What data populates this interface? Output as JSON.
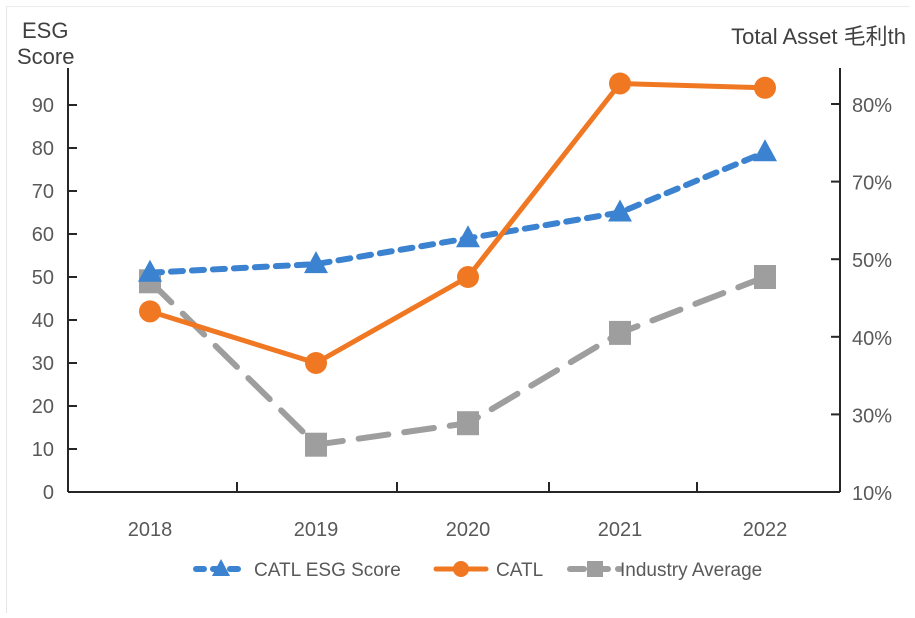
{
  "chart_data": {
    "type": "line",
    "title": "",
    "categories": [
      "2018",
      "2019",
      "2020",
      "2021",
      "2022"
    ],
    "left_axis": {
      "title_line1": "ESG",
      "title_line2": "Score",
      "range": [
        0,
        90
      ],
      "ticks": [
        0,
        10,
        20,
        30,
        40,
        50,
        60,
        70,
        80,
        90
      ],
      "tick_labels": [
        "0",
        "10",
        "20",
        "30",
        "40",
        "50",
        "60",
        "70",
        "80",
        "90"
      ]
    },
    "right_axis": {
      "title": "Total Asset 毛利th",
      "tick_labels": [
        "80%",
        "70%",
        "50%",
        "40%",
        "30%",
        "10%"
      ]
    },
    "series": [
      {
        "name": "CATL ESG Score",
        "color": "#3b82d0",
        "style": "dashed",
        "marker": "triangle",
        "values": [
          51,
          53,
          59,
          65,
          79
        ]
      },
      {
        "name": "CATL",
        "color": "#f07823",
        "style": "solid",
        "marker": "circle",
        "values": [
          42,
          30,
          50,
          95,
          94
        ]
      },
      {
        "name": "Industry Average",
        "color": "#9e9e9e",
        "style": "long-dash",
        "marker": "square",
        "values": [
          49,
          11,
          16,
          37,
          50
        ]
      }
    ],
    "legend_position": "bottom",
    "grid": false
  }
}
